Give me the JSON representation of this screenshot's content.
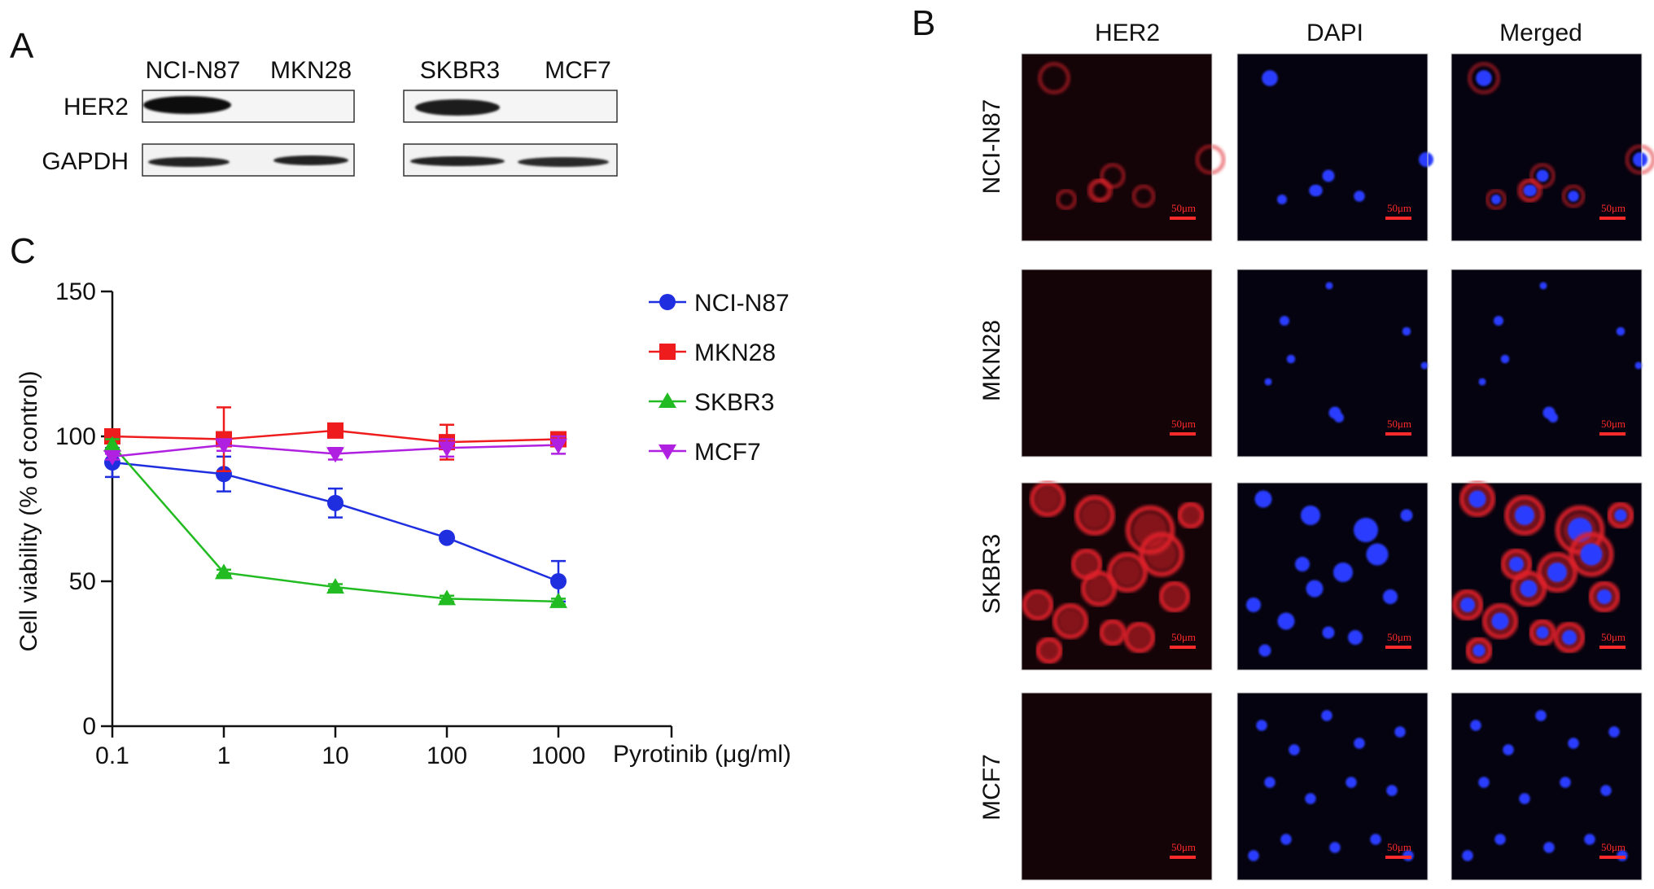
{
  "panels": {
    "a_letter": "A",
    "b_letter": "B",
    "c_letter": "C"
  },
  "western_blot": {
    "lanes_left": [
      "NCI-N87",
      "MKN28"
    ],
    "lanes_right": [
      "SKBR3",
      "MCF7"
    ],
    "rows": [
      "HER2",
      "GAPDH"
    ],
    "her2_band_present": {
      "NCI-N87": true,
      "MKN28": false,
      "SKBR3": true,
      "MCF7": false
    },
    "gapdh_band_present": {
      "NCI-N87": true,
      "MKN28": true,
      "SKBR3": true,
      "MCF7": true
    }
  },
  "if_panel": {
    "columns": [
      "HER2",
      "DAPI",
      "Merged"
    ],
    "rows": [
      "NCI-N87",
      "MKN28",
      "SKBR3",
      "MCF7"
    ],
    "scale_bar_label": "50μm",
    "colors": {
      "her2": "#e0242c",
      "dapi": "#2a3cff",
      "background": "#0a0612",
      "scale_bar": "#ff2a2a"
    }
  },
  "chart_data": {
    "type": "line",
    "x": [
      0.1,
      1,
      10,
      100,
      1000
    ],
    "x_tick_labels": [
      "0.1",
      "1",
      "10",
      "100",
      "1000"
    ],
    "xscale": "log",
    "xlabel": "Pyrotinib (μg/ml)",
    "ylabel": "Cell viability (% of control)",
    "ylim": [
      0,
      150
    ],
    "y_ticks": [
      0,
      50,
      100,
      150
    ],
    "legend_position": "top-right",
    "series": [
      {
        "name": "NCI-N87",
        "color": "#1f2fe0",
        "marker": "circle",
        "values": [
          91,
          87,
          77,
          65,
          50
        ],
        "errors": [
          5,
          6,
          5,
          1,
          7
        ]
      },
      {
        "name": "MKN28",
        "color": "#ee1c1c",
        "marker": "square",
        "values": [
          100,
          99,
          102,
          98,
          99
        ],
        "errors": [
          1,
          11,
          1,
          6,
          2
        ]
      },
      {
        "name": "SKBR3",
        "color": "#22bb22",
        "marker": "triangle-up",
        "values": [
          97,
          53,
          48,
          44,
          43
        ],
        "errors": [
          2,
          1,
          1,
          1,
          1
        ]
      },
      {
        "name": "MCF7",
        "color": "#b020e0",
        "marker": "triangle-down",
        "values": [
          93,
          97,
          94,
          96,
          97
        ],
        "errors": [
          1,
          2,
          2,
          3,
          3
        ]
      }
    ]
  }
}
